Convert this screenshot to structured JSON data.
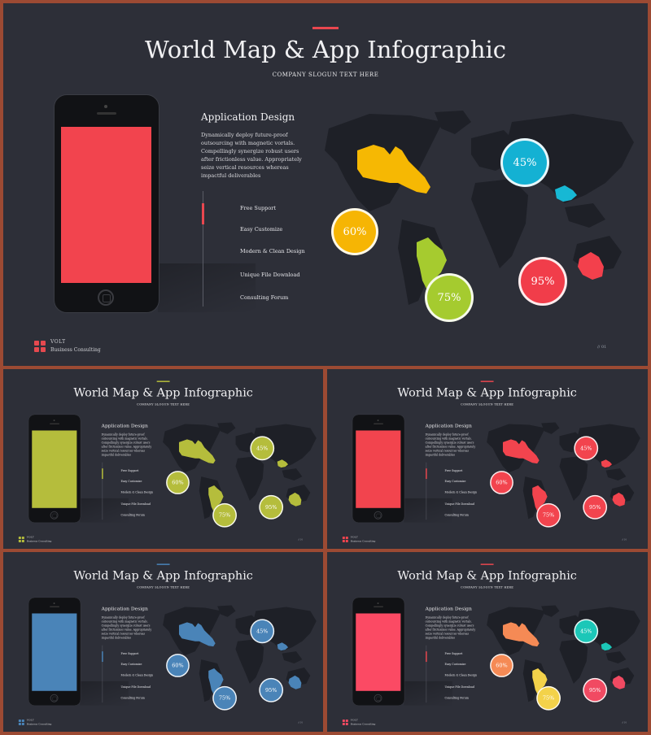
{
  "title": "World Map & App Infographic",
  "slogan": "COMPANY SLOGUN TEXT HERE",
  "app_title": "Application Design",
  "app_desc": "Dynamically deploy future-proof outsourcing with magnetic vortals. Compellingly synergize robust users after frictionless value. Appropriately seize vertical resources whereas impactful deliverables",
  "features": [
    "Free Support",
    "Easy Customize",
    "Modern & Clean Design",
    "Unique File Download",
    "Consulting Forum"
  ],
  "brand": "VOLT",
  "brand_sub": "Business Consulting",
  "page_number": "// 01",
  "bubbles": [
    "60%",
    "75%",
    "45%",
    "95%"
  ],
  "slides": [
    {
      "accent": "#e9474f",
      "screen": "#f2444e",
      "c_north_america": "#f6b803",
      "c_south_america": "#a6cb2f",
      "c_russia_bubble": "#16b3d6",
      "c_asia_small": "#17b8d4",
      "c_australia": "#f3404c",
      "b60": "#f6b504",
      "b75": "#a5cb2f",
      "b45": "#14b1d3",
      "b95": "#f13d4a",
      "logo": "#e6494f"
    },
    {
      "accent": "#b7bf3b",
      "screen": "#b5bd3c",
      "c_north_america": "#b5bd3c",
      "c_south_america": "#b5bd3c",
      "c_russia_bubble": "#b5bd3c",
      "c_asia_small": "#b5bd3c",
      "c_australia": "#b5bd3c",
      "b60": "#b5bd3c",
      "b75": "#b5bd3c",
      "b45": "#b5bd3c",
      "b95": "#b5bd3c",
      "logo": "#b5bd3c"
    },
    {
      "accent": "#e9474f",
      "screen": "#f2444e",
      "c_north_america": "#f2444e",
      "c_south_america": "#f2444e",
      "c_russia_bubble": "#f2444e",
      "c_asia_small": "#f2444e",
      "c_australia": "#f2444e",
      "b60": "#f2444e",
      "b75": "#f2444e",
      "b45": "#f2444e",
      "b95": "#f2444e",
      "logo": "#f2444e"
    },
    {
      "accent": "#4a84b8",
      "screen": "#4a84b8",
      "c_north_america": "#4a84b8",
      "c_south_america": "#4a84b8",
      "c_russia_bubble": "#4a84b8",
      "c_asia_small": "#4a84b8",
      "c_australia": "#4a84b8",
      "b60": "#4a84b8",
      "b75": "#4a84b8",
      "b45": "#4a84b8",
      "b95": "#4a84b8",
      "logo": "#4a84b8"
    },
    {
      "accent": "#e9474f",
      "screen": "#fb4a64",
      "c_north_america": "#f58a55",
      "c_south_america": "#f3d24a",
      "c_russia_bubble": "#1cc7b8",
      "c_asia_small": "#1cc7b8",
      "c_australia": "#f14a62",
      "b60": "#f58a55",
      "b75": "#f3d24a",
      "b45": "#1cc7b8",
      "b95": "#f14a62",
      "logo": "#f14a62"
    }
  ]
}
